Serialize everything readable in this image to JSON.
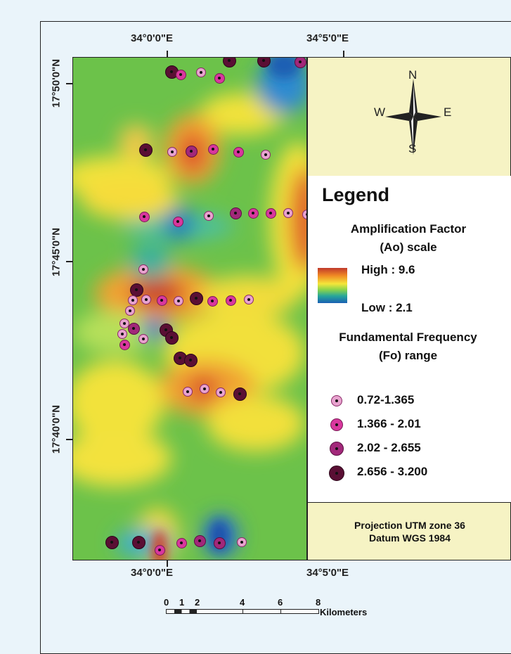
{
  "map": {
    "lon_labels": [
      "34°0'0\"E",
      "34°5'0\"E"
    ],
    "lat_labels": [
      "17°50'0\"N",
      "17°45'0\"N",
      "17°40'0\"N"
    ]
  },
  "north_arrow": {
    "n": "N",
    "s": "S",
    "e": "E",
    "w": "W"
  },
  "legend": {
    "title": "Legend",
    "amp_title_1": "Amplification Factor",
    "amp_title_2": "(Ao) scale",
    "high": "High : 9.6",
    "low": "Low : 2.1",
    "freq_title_1": "Fundamental Frequency",
    "freq_title_2": "(Fo) range",
    "classes": [
      {
        "label": "0.72-1.365",
        "fill": "#e8a3cf"
      },
      {
        "label": "1.366 - 2.01",
        "fill": "#d9379e"
      },
      {
        "label": "2.02 - 2.655",
        "fill": "#a2287a"
      },
      {
        "label": "2.656 - 3.200",
        "fill": "#5a0f34"
      }
    ]
  },
  "projection": {
    "line1": "Projection UTM zone 36",
    "line2": "Datum WGS 1984"
  },
  "scale_bar": {
    "ticks": [
      "0",
      "1",
      "2",
      "4",
      "6",
      "8"
    ],
    "unit": "Kilometers"
  },
  "stations_class_colors": [
    "#e8a3cf",
    "#d9379e",
    "#a2287a",
    "#5a0f34"
  ]
}
